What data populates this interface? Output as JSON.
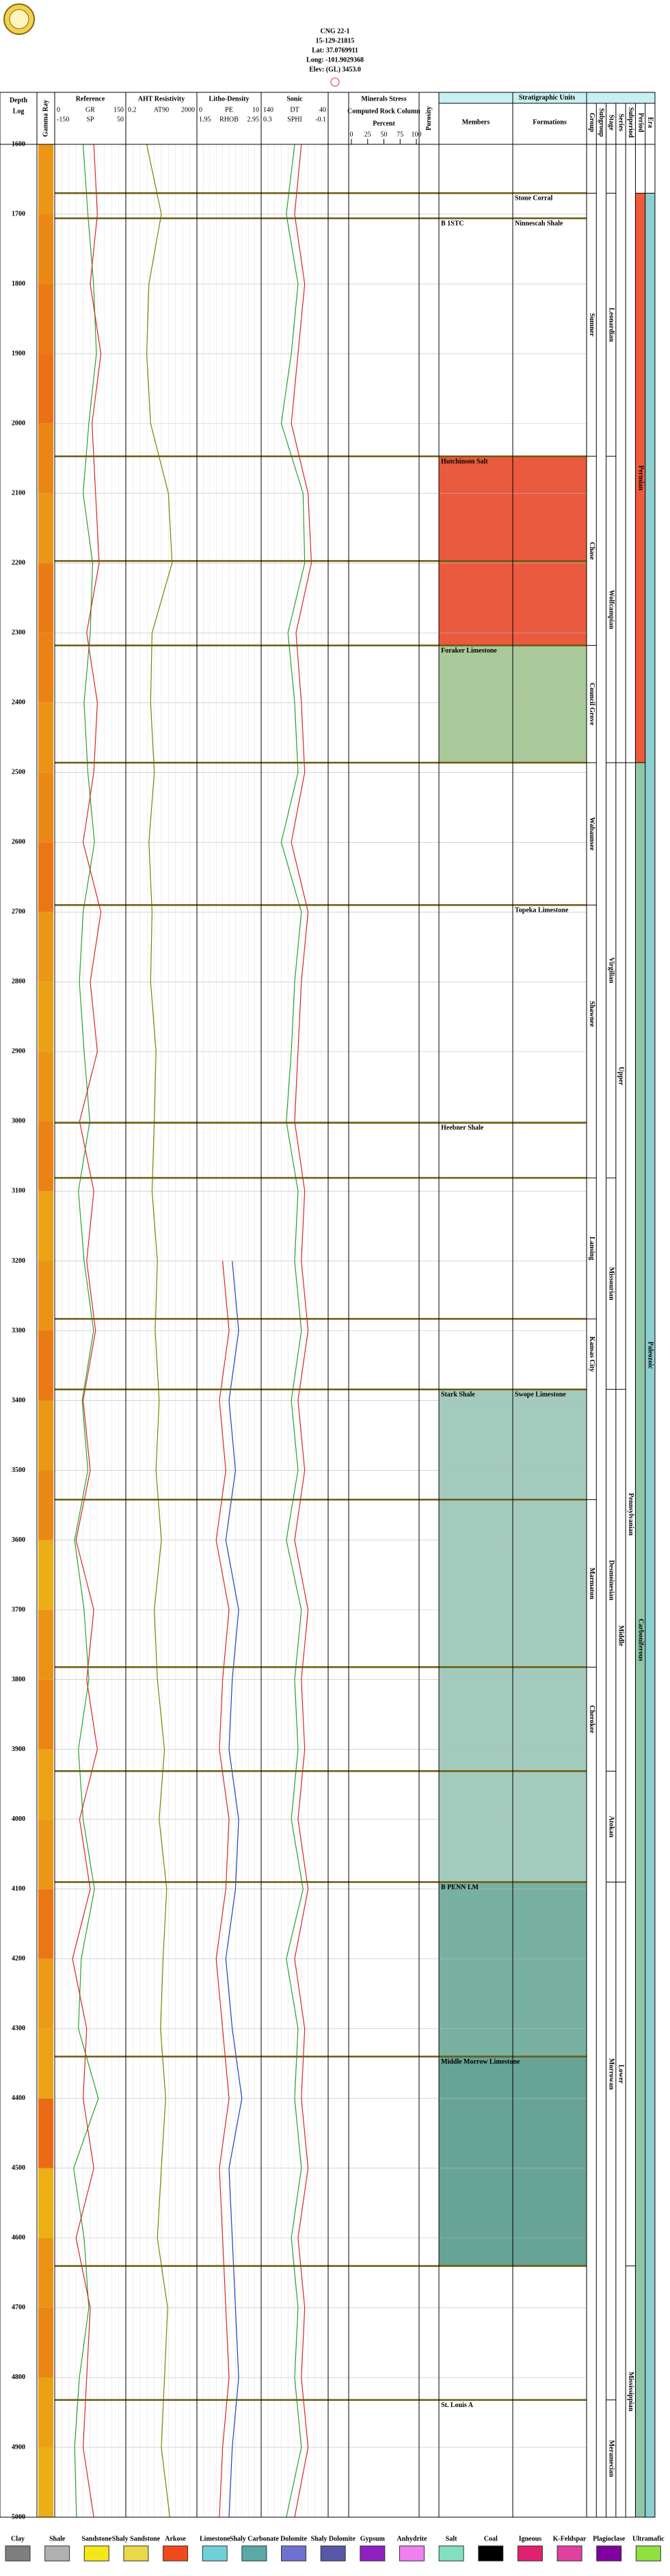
{
  "header": {
    "title": "CNG 22-1",
    "api": "15-129-21815",
    "lat": "Lat: 37.0769911",
    "long": "Long: -101.9029368",
    "elev": "Elev: (GL) 3453.0"
  },
  "chart_data": {
    "type": "well-log",
    "depth_title": "Depth",
    "depth_subtitle": "Log",
    "strip_title": "Gamma Ray",
    "ylim": [
      1600,
      5000
    ],
    "yticks": [
      1600,
      1700,
      1800,
      1900,
      2000,
      2100,
      2200,
      2300,
      2400,
      2500,
      2600,
      2700,
      2800,
      2900,
      3000,
      3100,
      3200,
      3300,
      3400,
      3500,
      3600,
      3700,
      3800,
      3900,
      4000,
      4100,
      4200,
      4300,
      4400,
      4500,
      4600,
      4700,
      4800,
      4900,
      5000
    ],
    "depths": [
      1600,
      1700,
      1800,
      1900,
      2000,
      2100,
      2200,
      2300,
      2400,
      2500,
      2600,
      2700,
      2800,
      2900,
      3000,
      3100,
      3200,
      3300,
      3400,
      3500,
      3600,
      3700,
      3800,
      3900,
      4000,
      4100,
      4200,
      4300,
      4400,
      4500,
      4600,
      4700,
      4800,
      4900,
      5000
    ],
    "tracks": [
      {
        "title": "Reference",
        "series": [
          {
            "name": "GR",
            "color": "#2ca02c",
            "xlim": [
              0,
              150
            ],
            "values": [
              60,
              70,
              82,
              88,
              72,
              60,
              80,
              75,
              62,
              70,
              84,
              60,
              52,
              62,
              74,
              50,
              62,
              82,
              58,
              70,
              42,
              62,
              72,
              50,
              60,
              84,
              56,
              50,
              92,
              40,
              62,
              72,
              52,
              42,
              46
            ]
          },
          {
            "name": "SP",
            "color": "#d62728",
            "xlim": [
              -150,
              50
            ],
            "values": [
              -40,
              -30,
              -50,
              -20,
              -45,
              -35,
              -25,
              -60,
              -30,
              -40,
              -70,
              -20,
              -50,
              -30,
              -80,
              -40,
              -60,
              -35,
              -70,
              -50,
              -90,
              -40,
              -60,
              -30,
              -80,
              -50,
              -100,
              -60,
              -70,
              -40,
              -90,
              -50,
              -60,
              -70,
              -40
            ]
          }
        ]
      },
      {
        "title": "AHT Resistivity",
        "series": [
          {
            "name": "AT90",
            "color": "#808000",
            "xlim": [
              0.2,
              2000
            ],
            "log": true,
            "values": [
              3,
              20,
              4,
              3,
              5,
              50,
              80,
              6,
              5,
              8,
              4,
              6,
              5,
              10,
              8,
              6,
              12,
              9,
              15,
              10,
              20,
              8,
              12,
              30,
              15,
              40,
              25,
              18,
              35,
              20,
              12,
              45,
              30,
              20,
              60
            ]
          }
        ]
      },
      {
        "title": "Litho-Density",
        "series": [
          {
            "name": "PE",
            "color": "#d62728",
            "xlim": [
              0,
              10
            ],
            "values": [
              null,
              null,
              null,
              null,
              null,
              null,
              null,
              null,
              null,
              null,
              null,
              null,
              null,
              null,
              null,
              null,
              4,
              5,
              3.5,
              4.5,
              3,
              5,
              4,
              3.5,
              5,
              4.5,
              3,
              4,
              5,
              3.5,
              4,
              4.5,
              5,
              4,
              3.5
            ]
          },
          {
            "name": "RHOB",
            "color": "#1f3fbf",
            "xlim": [
              1.95,
              2.95
            ],
            "values": [
              null,
              null,
              null,
              null,
              null,
              null,
              null,
              null,
              null,
              null,
              null,
              null,
              null,
              null,
              null,
              null,
              2.5,
              2.6,
              2.45,
              2.55,
              2.4,
              2.6,
              2.5,
              2.45,
              2.6,
              2.55,
              2.4,
              2.5,
              2.65,
              2.45,
              2.5,
              2.55,
              2.6,
              2.5,
              2.45
            ]
          }
        ]
      },
      {
        "title": "Sonic",
        "series": [
          {
            "name": "DT",
            "color": "#d62728",
            "xlim": [
              140,
              40
            ],
            "values": [
              80,
              90,
              75,
              85,
              95,
              70,
              65,
              88,
              80,
              75,
              95,
              70,
              80,
              85,
              90,
              75,
              80,
              70,
              85,
              75,
              90,
              70,
              80,
              75,
              85,
              70,
              90,
              75,
              80,
              70,
              85,
              75,
              80,
              70,
              90
            ]
          },
          {
            "name": "SPHI",
            "color": "#2ca02c",
            "xlim": [
              0.3,
              -0.1
            ],
            "values": [
              0.1,
              0.15,
              0.08,
              0.12,
              0.18,
              0.05,
              0.04,
              0.14,
              0.1,
              0.08,
              0.18,
              0.06,
              0.1,
              0.12,
              0.15,
              0.08,
              0.1,
              0.06,
              0.12,
              0.08,
              0.15,
              0.06,
              0.1,
              0.08,
              0.12,
              0.05,
              0.15,
              0.08,
              0.1,
              0.06,
              0.12,
              0.08,
              0.1,
              0.06,
              0.15
            ]
          }
        ]
      }
    ],
    "rock_title": "Minerals Stress",
    "rock_subtitle": "Computed Rock Column",
    "rock_unit": "Percent",
    "rock_ticks": [
      0,
      25,
      50,
      75,
      100
    ],
    "porosity_title": "Porosity",
    "strat_title": "Stratigraphic Units",
    "members_title": "Members",
    "formations_title": "Formations",
    "marker_lines": [
      1670,
      1706,
      2047,
      2197,
      2318,
      2486,
      2690,
      3002,
      3081,
      3283,
      3384,
      3542,
      3782,
      3931,
      4090,
      4340,
      4640,
      4832
    ],
    "members": [
      {
        "name": "B 1STC",
        "depth": 1706
      },
      {
        "name": "Hutchinson Salt",
        "depth": 2047,
        "base": 2318,
        "color": "#ea5a3e"
      },
      {
        "name": "Foraker Limestone",
        "depth": 2318,
        "base": 2486,
        "color": "#a9c99a"
      },
      {
        "name": "Heebner Shale",
        "depth": 3002
      },
      {
        "name": "Stark Shale",
        "depth": 3384,
        "base": 4090,
        "color": "#a3cbbd"
      },
      {
        "name": "B PENN LM",
        "depth": 4090,
        "base": 4340,
        "color": "#78b0a2"
      },
      {
        "name": "Middle Morrow Limestone",
        "depth": 4340,
        "base": 4640,
        "color": "#67a495"
      },
      {
        "name": "St. Louis A",
        "depth": 4832
      }
    ],
    "formations": [
      {
        "name": "Stone Corral",
        "depth": 1670
      },
      {
        "name": "Ninnescah Shale",
        "depth": 1706
      },
      {
        "name": "Topeka Limestone",
        "depth": 2690
      },
      {
        "name": "Swope Limestone",
        "depth": 3384
      }
    ],
    "strat_columns": [
      {
        "header": "Group",
        "units": [
          {
            "name": "Sumner",
            "top": 1670,
            "base": 2047
          },
          {
            "name": "Chase",
            "top": 2047,
            "base": 2318
          },
          {
            "name": "Council Grove",
            "top": 2318,
            "base": 2486
          },
          {
            "name": "Wabaunsee",
            "top": 2486,
            "base": 2690
          },
          {
            "name": "Shawnee",
            "top": 2690,
            "base": 3002
          },
          {
            "name": "Lansing",
            "top": 3081,
            "base": 3283
          },
          {
            "name": "Kansas City",
            "top": 3283,
            "base": 3384
          },
          {
            "name": "Marmaton",
            "top": 3542,
            "base": 3782
          },
          {
            "name": "Cherokee",
            "top": 3782,
            "base": 3931
          }
        ]
      },
      {
        "header": "Subgroup",
        "units": []
      },
      {
        "header": "Stage",
        "units": [
          {
            "name": "Leonardian",
            "top": 1670,
            "base": 2047
          },
          {
            "name": "Wolfcampian",
            "top": 2047,
            "base": 2486
          },
          {
            "name": "Virgilian",
            "top": 2486,
            "base": 3081
          },
          {
            "name": "Missourian",
            "top": 3081,
            "base": 3384
          },
          {
            "name": "Desmoinesian",
            "top": 3384,
            "base": 3931
          },
          {
            "name": "Atokan",
            "top": 3931,
            "base": 4090
          },
          {
            "name": "Morrowan",
            "top": 4090,
            "base": 4640
          },
          {
            "name": "Meramecian",
            "top": 4832,
            "base": 5000
          }
        ]
      },
      {
        "header": "Series",
        "units": [
          {
            "name": "Upper",
            "top": 2486,
            "base": 3384
          },
          {
            "name": "Middle",
            "top": 3384,
            "base": 4090
          },
          {
            "name": "Lower",
            "top": 4090,
            "base": 4640
          }
        ]
      },
      {
        "header": "Subperiod",
        "units": [
          {
            "name": "Pennsylvanian",
            "top": 2486,
            "base": 4640
          },
          {
            "name": "Mississippian",
            "top": 4640,
            "base": 5000
          }
        ]
      },
      {
        "header": "Period",
        "units": [
          {
            "name": "Permian",
            "top": 1670,
            "base": 2486,
            "color": "#ee5a3a"
          },
          {
            "name": "Carboniferous",
            "top": 2486,
            "base": 5000,
            "color": "#8fc6a8"
          }
        ]
      },
      {
        "header": "Era",
        "units": [
          {
            "name": "Paleozoic",
            "top": 1670,
            "base": 5000,
            "color": "#8ccfcf"
          }
        ]
      }
    ],
    "legend": [
      {
        "name": "Clay",
        "color": "#7f7f7f"
      },
      {
        "name": "Shale",
        "color": "#b0b0b0"
      },
      {
        "name": "Sandstone",
        "color": "#f5e61a"
      },
      {
        "name": "Shaly Sandstone",
        "color": "#e8d84a"
      },
      {
        "name": "Arkose",
        "color": "#f04a1a"
      },
      {
        "name": "Limestone",
        "color": "#6fd0d8"
      },
      {
        "name": "Shaly Carbonate",
        "color": "#5aa8a8"
      },
      {
        "name": "Dolomite",
        "color": "#7070d0"
      },
      {
        "name": "Shaly Dolomite",
        "color": "#5858a8"
      },
      {
        "name": "Gypsum",
        "color": "#9020c0"
      },
      {
        "name": "Anhydrite",
        "color": "#f080f0"
      },
      {
        "name": "Salt",
        "color": "#80e0c0"
      },
      {
        "name": "Coal",
        "color": "#000000"
      },
      {
        "name": "Igneous",
        "color": "#e02070"
      },
      {
        "name": "K-Feldspar",
        "color": "#e040a0"
      },
      {
        "name": "Plagioclase",
        "color": "#8000a0"
      },
      {
        "name": "Ultramafic",
        "color": "#90e040"
      }
    ]
  }
}
